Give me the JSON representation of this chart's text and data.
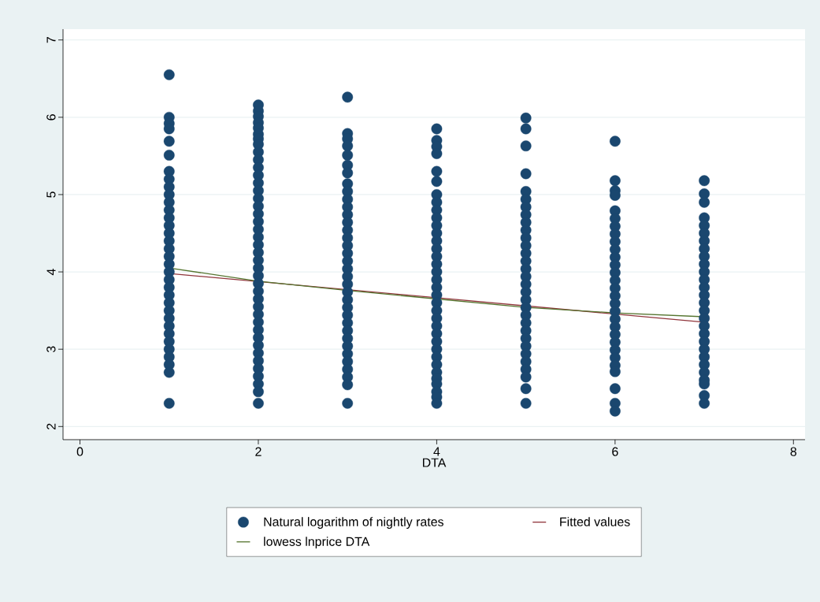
{
  "chart_data": {
    "type": "scatter",
    "xlabel": "DTA",
    "xlim": [
      -0.19,
      8.13
    ],
    "xticks": [
      0,
      2,
      4,
      6,
      8
    ],
    "ylim": [
      1.83,
      7.14
    ],
    "yticks": [
      2,
      3,
      4,
      5,
      6,
      7
    ],
    "grid": "y",
    "legend": "bottom",
    "series": [
      {
        "name": "Natural logarithm of nightly rates",
        "color": "#1a476f",
        "marker": "circle",
        "x": [
          1,
          1,
          1,
          1,
          1,
          1,
          1,
          1,
          1,
          1,
          1,
          1,
          1,
          1,
          1,
          1,
          1,
          1,
          1,
          1,
          1,
          1,
          1,
          1,
          1,
          1,
          1,
          1,
          1,
          1,
          1,
          1,
          1,
          1,
          2,
          2,
          2,
          2,
          2,
          2,
          2,
          2,
          2,
          2,
          2,
          2,
          2,
          2,
          2,
          2,
          2,
          2,
          2,
          2,
          2,
          2,
          2,
          2,
          2,
          2,
          2,
          2,
          2,
          2,
          2,
          2,
          2,
          2,
          2,
          2,
          2,
          2,
          2,
          2,
          2,
          3,
          3,
          3,
          3,
          3,
          3,
          3,
          3,
          3,
          3,
          3,
          3,
          3,
          3,
          3,
          3,
          3,
          3,
          3,
          3,
          3,
          3,
          3,
          3,
          3,
          3,
          3,
          3,
          3,
          3,
          3,
          3,
          3,
          3,
          3,
          4,
          4,
          4,
          4,
          4,
          4,
          4,
          4,
          4,
          4,
          4,
          4,
          4,
          4,
          4,
          4,
          4,
          4,
          4,
          4,
          4,
          4,
          4,
          4,
          4,
          4,
          4,
          4,
          4,
          4,
          4,
          4,
          4,
          4,
          4,
          5,
          5,
          5,
          5,
          5,
          5,
          5,
          5,
          5,
          5,
          5,
          5,
          5,
          5,
          5,
          5,
          5,
          5,
          5,
          5,
          5,
          5,
          5,
          5,
          5,
          5,
          5,
          5,
          5,
          5,
          5,
          6,
          6,
          6,
          6,
          6,
          6,
          6,
          6,
          6,
          6,
          6,
          6,
          6,
          6,
          6,
          6,
          6,
          6,
          6,
          6,
          6,
          6,
          6,
          6,
          6,
          6,
          6,
          6,
          6,
          7,
          7,
          7,
          7,
          7,
          7,
          7,
          7,
          7,
          7,
          7,
          7,
          7,
          7,
          7,
          7,
          7,
          7,
          7,
          7,
          7,
          7,
          7,
          7,
          7,
          7,
          7,
          7
        ],
        "values": [
          6.55,
          6.0,
          5.92,
          5.85,
          5.69,
          5.51,
          5.3,
          5.2,
          5.1,
          5.0,
          4.9,
          4.8,
          4.7,
          4.6,
          4.5,
          4.4,
          4.3,
          4.2,
          4.1,
          4.0,
          3.9,
          3.8,
          3.7,
          3.6,
          3.5,
          3.4,
          3.3,
          3.2,
          3.1,
          3.0,
          2.9,
          2.8,
          2.7,
          2.3,
          6.16,
          6.08,
          6.01,
          5.93,
          5.86,
          5.78,
          5.72,
          5.65,
          5.55,
          5.45,
          5.35,
          5.25,
          5.15,
          5.05,
          4.95,
          4.85,
          4.75,
          4.65,
          4.55,
          4.45,
          4.35,
          4.25,
          4.15,
          4.05,
          3.95,
          3.85,
          3.75,
          3.65,
          3.55,
          3.45,
          3.35,
          3.25,
          3.15,
          3.05,
          2.95,
          2.85,
          2.75,
          2.65,
          2.55,
          2.45,
          2.3,
          6.26,
          5.79,
          5.72,
          5.63,
          5.51,
          5.38,
          5.28,
          5.14,
          5.04,
          4.94,
          4.84,
          4.74,
          4.64,
          4.54,
          4.44,
          4.34,
          4.24,
          4.14,
          4.04,
          3.94,
          3.84,
          3.74,
          3.64,
          3.54,
          3.44,
          3.34,
          3.24,
          3.14,
          3.04,
          2.94,
          2.84,
          2.74,
          2.64,
          2.54,
          2.3,
          5.85,
          5.7,
          5.62,
          5.53,
          5.3,
          5.17,
          5.0,
          4.9,
          4.8,
          4.7,
          4.6,
          4.5,
          4.4,
          4.3,
          4.2,
          4.1,
          4.0,
          3.9,
          3.8,
          3.7,
          3.6,
          3.5,
          3.4,
          3.3,
          3.2,
          3.1,
          3.0,
          2.9,
          2.8,
          2.7,
          2.62,
          2.55,
          2.45,
          2.38,
          2.3,
          5.99,
          5.85,
          5.63,
          5.27,
          5.04,
          4.94,
          4.84,
          4.74,
          4.64,
          4.54,
          4.44,
          4.34,
          4.24,
          4.14,
          4.04,
          3.94,
          3.84,
          3.74,
          3.64,
          3.54,
          3.44,
          3.34,
          3.24,
          3.14,
          3.04,
          2.94,
          2.84,
          2.74,
          2.64,
          2.49,
          2.3,
          5.69,
          5.18,
          5.05,
          4.99,
          4.79,
          4.69,
          4.59,
          4.49,
          4.39,
          4.29,
          4.19,
          4.09,
          3.99,
          3.89,
          3.79,
          3.69,
          3.59,
          3.49,
          3.39,
          3.29,
          3.19,
          3.09,
          2.99,
          2.89,
          2.79,
          2.71,
          2.49,
          2.3,
          2.2,
          5.18,
          5.01,
          4.9,
          4.7,
          4.6,
          4.5,
          4.4,
          4.3,
          4.2,
          4.1,
          4.0,
          3.9,
          3.8,
          3.7,
          3.6,
          3.5,
          3.4,
          3.3,
          3.2,
          3.1,
          3.0,
          2.9,
          2.8,
          2.7,
          2.6,
          2.55,
          2.4,
          2.3
        ]
      },
      {
        "name": "Fitted values",
        "type": "line",
        "color": "#90353b",
        "marker": "none",
        "line_style": "solid",
        "x": [
          1,
          7
        ],
        "values": [
          3.98,
          3.35
        ]
      },
      {
        "name": "lowess lnprice DTA",
        "type": "line",
        "color": "#55752f",
        "marker": "none",
        "line_style": "solid",
        "x": [
          1,
          2,
          3,
          4,
          5,
          6,
          7
        ],
        "values": [
          4.05,
          3.88,
          3.76,
          3.65,
          3.54,
          3.47,
          3.42
        ]
      }
    ]
  }
}
